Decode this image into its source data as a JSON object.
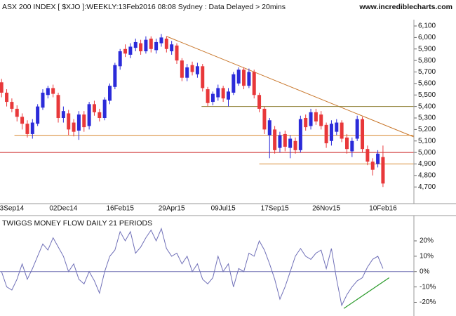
{
  "chart_data": [
    {
      "type": "candlestick",
      "title": "ASX 200 INDEX [ $XJO ]:WEEKLY:13Feb2016 08:08 Sydney : Data Delayed > 20mins",
      "source": "www.incrediblecharts.com",
      "categories": [
        null,
        null,
        "3Sep14",
        null,
        null,
        null,
        null,
        null,
        null,
        null,
        null,
        null,
        "02Dec14",
        null,
        null,
        null,
        null,
        null,
        null,
        null,
        null,
        null,
        null,
        "16Feb15",
        null,
        null,
        null,
        null,
        null,
        null,
        null,
        null,
        null,
        "29Apr15",
        null,
        null,
        null,
        null,
        null,
        null,
        null,
        null,
        null,
        "09Jul15",
        null,
        null,
        null,
        null,
        null,
        null,
        null,
        null,
        null,
        "17Sep15",
        null,
        null,
        null,
        null,
        null,
        null,
        null,
        null,
        null,
        "26Nov15",
        null,
        null,
        null,
        null,
        null,
        null,
        null,
        null,
        null,
        null,
        "10Feb16"
      ],
      "open": [
        5610,
        5520,
        5440,
        5380,
        5310,
        5250,
        5160,
        5250,
        5390,
        5500,
        5560,
        5500,
        5300,
        5340,
        5260,
        5190,
        5330,
        5230,
        5420,
        5350,
        5300,
        5450,
        5570,
        5750,
        5900,
        5850,
        5910,
        5950,
        5880,
        5990,
        5890,
        5950,
        5990,
        5880,
        5930,
        5800,
        5650,
        5760,
        5680,
        5750,
        5550,
        5440,
        5480,
        5560,
        5460,
        5520,
        5600,
        5720,
        5580,
        5700,
        5500,
        5380,
        5150,
        5200,
        5040,
        5160,
        5040,
        5100,
        5020,
        5300,
        5230,
        5350,
        5330,
        5240,
        5100,
        5180,
        5260,
        5130,
        5010,
        5120,
        5290,
        5030,
        4920,
        4900,
        4960
      ],
      "high": [
        5640,
        5550,
        5470,
        5410,
        5340,
        5280,
        5290,
        5420,
        5550,
        5580,
        5590,
        5520,
        5400,
        5370,
        5290,
        5360,
        5360,
        5440,
        5450,
        5380,
        5480,
        5600,
        5780,
        5900,
        5940,
        5950,
        5990,
        5980,
        6010,
        6010,
        5990,
        6030,
        6010,
        5970,
        5950,
        5820,
        5770,
        5790,
        5780,
        5770,
        5570,
        5530,
        5590,
        5580,
        5560,
        5700,
        5740,
        5740,
        5730,
        5720,
        5520,
        5400,
        5300,
        5230,
        5180,
        5190,
        5150,
        5130,
        5320,
        5330,
        5380,
        5380,
        5360,
        5260,
        5280,
        5290,
        5280,
        5160,
        5130,
        5320,
        5310,
        5060,
        4950,
        5020,
        5060
      ],
      "low": [
        5480,
        5400,
        5350,
        5270,
        5200,
        5130,
        5120,
        5230,
        5370,
        5470,
        5480,
        5260,
        5260,
        5150,
        5140,
        5110,
        5180,
        5200,
        5320,
        5270,
        5280,
        5420,
        5550,
        5720,
        5830,
        5820,
        5880,
        5850,
        5860,
        5870,
        5860,
        5920,
        5870,
        5850,
        5770,
        5620,
        5620,
        5670,
        5650,
        5530,
        5400,
        5410,
        5450,
        5440,
        5400,
        5500,
        5580,
        5550,
        5560,
        5470,
        5350,
        5160,
        4950,
        4990,
        5000,
        5010,
        4950,
        4990,
        5000,
        5190,
        5200,
        5240,
        5200,
        5040,
        5060,
        5150,
        5090,
        4990,
        4960,
        5100,
        5000,
        4890,
        4800,
        4870,
        4700
      ],
      "close": [
        5520,
        5440,
        5380,
        5310,
        5250,
        5160,
        5260,
        5400,
        5520,
        5560,
        5510,
        5300,
        5360,
        5200,
        5180,
        5330,
        5220,
        5420,
        5350,
        5300,
        5460,
        5580,
        5760,
        5880,
        5860,
        5920,
        5960,
        5880,
        5980,
        5900,
        5960,
        6000,
        5900,
        5940,
        5800,
        5650,
        5740,
        5700,
        5750,
        5560,
        5430,
        5510,
        5560,
        5470,
        5530,
        5680,
        5720,
        5580,
        5700,
        5500,
        5380,
        5200,
        5280,
        5020,
        5150,
        5050,
        5120,
        5020,
        5290,
        5220,
        5350,
        5270,
        5230,
        5080,
        5250,
        5260,
        5120,
        5030,
        5100,
        5290,
        5030,
        4920,
        4850,
        4990,
        4730
      ],
      "up_color": "#2b2bd9",
      "down_color": "#e8383a",
      "xlim": [
        -0.3,
        80
      ],
      "ylim": [
        4555,
        6155
      ],
      "yticks": [
        {
          "value": 4700,
          "label": "4,700"
        },
        {
          "value": 4800,
          "label": "4,800"
        },
        {
          "value": 4900,
          "label": "4,900"
        },
        {
          "value": 5000,
          "label": "5,000"
        },
        {
          "value": 5100,
          "label": "5,100"
        },
        {
          "value": 5200,
          "label": "5,200"
        },
        {
          "value": 5300,
          "label": "5,300"
        },
        {
          "value": 5400,
          "label": "5,400"
        },
        {
          "value": 5500,
          "label": "5,500"
        },
        {
          "value": 5600,
          "label": "5,600"
        },
        {
          "value": 5700,
          "label": "5,700"
        },
        {
          "value": 5800,
          "label": "5,800"
        },
        {
          "value": 5900,
          "label": "5,900"
        },
        {
          "value": 6000,
          "label": "6,000"
        },
        {
          "value": 6100,
          "label": "6,100"
        }
      ],
      "lines": [
        {
          "from": [
            32,
            6010
          ],
          "to": [
            80,
            5135
          ],
          "color": "#c8762a"
        },
        {
          "from": [
            38.8,
            5400
          ],
          "to": [
            80,
            5400
          ],
          "color": "#8a7a2a"
        },
        {
          "from": [
            2.5,
            5150
          ],
          "to": [
            80,
            5150
          ],
          "color": "#d88a30"
        },
        {
          "from": [
            -0.3,
            5000
          ],
          "to": [
            80,
            5000
          ],
          "color": "#cc2222"
        },
        {
          "from": [
            50,
            4900
          ],
          "to": [
            80,
            4900
          ],
          "color": "#d88a30"
        }
      ]
    },
    {
      "type": "line",
      "title": "TWIGGS MONEY FLOW DAILY 21 PERIODS",
      "values": [
        0,
        -10,
        -12,
        -5,
        5,
        -5,
        2,
        10,
        18,
        14,
        22,
        16,
        10,
        0,
        5,
        -5,
        -8,
        0,
        -6,
        -14,
        0,
        10,
        14,
        26,
        20,
        26,
        12,
        16,
        22,
        27,
        20,
        28,
        15,
        10,
        12,
        5,
        10,
        0,
        5,
        -5,
        -8,
        -4,
        10,
        0,
        5,
        -10,
        2,
        0,
        12,
        10,
        20,
        14,
        5,
        -5,
        -18,
        -10,
        0,
        10,
        15,
        10,
        8,
        12,
        14,
        2,
        15,
        -5,
        -22,
        -15,
        -10,
        -6,
        -4,
        3,
        8,
        10,
        2
      ],
      "color": "#7070b8",
      "ylim": [
        -28,
        36
      ],
      "yticks": [
        {
          "value": 20,
          "label": "20%"
        },
        {
          "value": 10,
          "label": "10%"
        },
        {
          "value": 0,
          "label": "0%"
        },
        {
          "value": -10,
          "label": "-10%"
        },
        {
          "value": -20,
          "label": "-20%"
        }
      ],
      "zero_color": "#6a6ab0",
      "trendline": {
        "from": [
          66.4,
          -24
        ],
        "to": [
          75.2,
          -4
        ],
        "color": "#2a9a2a"
      }
    }
  ]
}
